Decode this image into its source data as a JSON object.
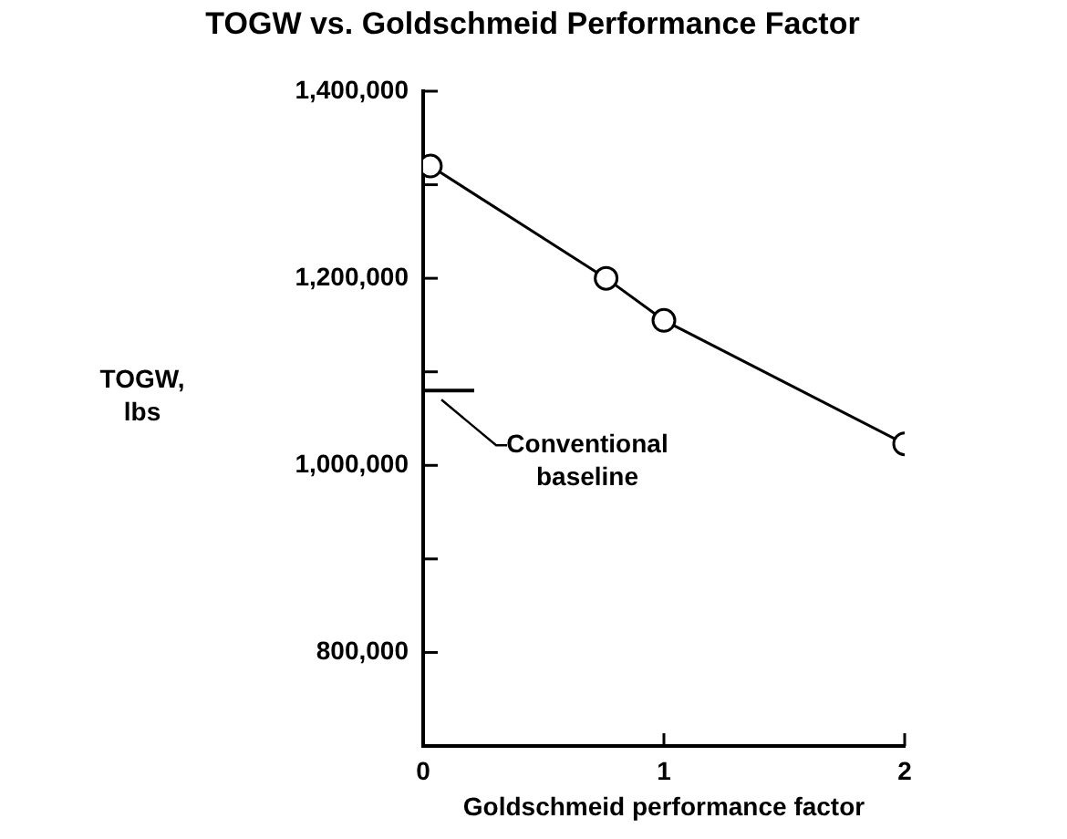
{
  "chart_data": {
    "type": "line",
    "title": "TOGW vs. Goldschmeid Performance Factor",
    "xlabel": "Goldschmeid performance factor",
    "ylabel": "TOGW, lbs",
    "x": [
      0.03,
      0.76,
      1.0,
      2.0
    ],
    "values": [
      1320000,
      1200000,
      1155000,
      1023000
    ],
    "color": "#000000",
    "marker": "circle",
    "xlim": [
      0,
      2
    ],
    "xticks": [
      0,
      1,
      2
    ],
    "ylim": [
      700000,
      1400000
    ],
    "yticks": [
      {
        "value": 800000,
        "label": "800,000"
      },
      {
        "value": 900000,
        "label": null
      },
      {
        "value": 1000000,
        "label": "1,000,000"
      },
      {
        "value": 1100000,
        "label": null
      },
      {
        "value": 1200000,
        "label": "1,200,000"
      },
      {
        "value": 1300000,
        "label": null
      },
      {
        "value": 1400000,
        "label": "1,400,000"
      }
    ],
    "ref_lines": [
      {
        "axis": "y",
        "value": 1080000,
        "label": "Conventional baseline"
      }
    ]
  }
}
